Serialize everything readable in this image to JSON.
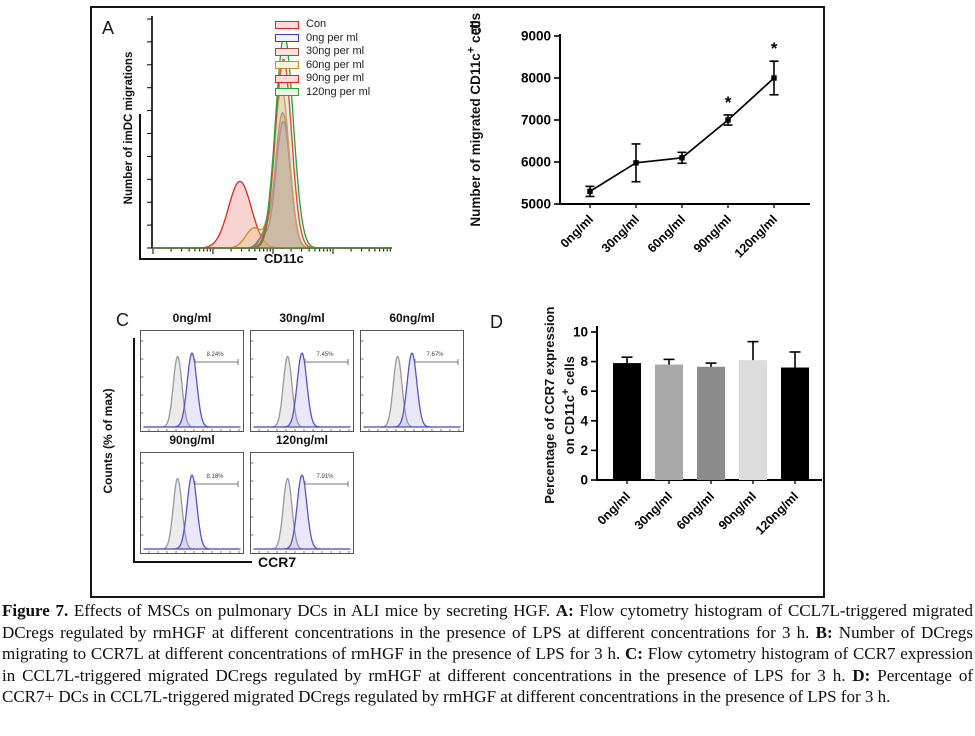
{
  "panel_a": {
    "label": "A",
    "y_axis_label": "Number of imDC migrations",
    "x_axis_label": "CD11c",
    "legend": [
      {
        "label": "Con",
        "stroke": "#e8231c",
        "fill": "#fbdcda"
      },
      {
        "label": "0ng per ml",
        "stroke": "#3a3ac8",
        "fill": "#f2f2fb"
      },
      {
        "label": "30ng per ml",
        "stroke": "#9c4a42",
        "fill": "#f5e4e0"
      },
      {
        "label": "60ng per ml",
        "stroke": "#c28f2c",
        "fill": "#faf2da"
      },
      {
        "label": "90ng per ml",
        "stroke": "#e8231c",
        "fill": "#fbdcda"
      },
      {
        "label": "120ng per ml",
        "stroke": "#2f9e35",
        "fill": "#e9f4e6"
      }
    ]
  },
  "panel_b": {
    "label": "B",
    "y_axis_label": {
      "pre": "Number of migrated CD11c",
      "sup": "+",
      "post": " cells"
    }
  },
  "panel_c": {
    "label": "C",
    "y_axis_label": "Counts (% of max)",
    "x_axis_label": "CCR7"
  },
  "panel_d": {
    "label": "D",
    "y_axis_label_line1": "Percentage of CCR7 expression",
    "y_axis_label_line2": {
      "pre": "on CD11c",
      "sup": "+",
      "post": " cells"
    }
  },
  "chart_data": [
    {
      "id": "A",
      "type": "area",
      "description": "Overlaid flow cytometry histograms of imDC migration vs CD11c",
      "xlabel": "CD11c",
      "ylabel": "Number of imDC migrations",
      "series": [
        {
          "name": "Con",
          "stroke": "#e8231c",
          "fill": "rgba(244,160,156,0.45)",
          "peaks": [
            {
              "center": 0.365,
              "height": 0.3,
              "sigma": 0.048
            }
          ]
        },
        {
          "name": "0ng per ml",
          "stroke": "#3a3ac8",
          "fill": "rgba(130,130,205,0.30)",
          "peaks": [
            {
              "center": 0.462,
              "height": 0.05,
              "sigma": 0.022
            },
            {
              "center": 0.547,
              "height": 0.57,
              "sigma": 0.03
            }
          ]
        },
        {
          "name": "30ng per ml",
          "stroke": "#9c4a42",
          "fill": "rgba(165,110,100,0.38)",
          "peaks": [
            {
              "center": 0.468,
              "height": 0.06,
              "sigma": 0.02
            },
            {
              "center": 0.545,
              "height": 0.61,
              "sigma": 0.031
            }
          ]
        },
        {
          "name": "60ng per ml",
          "stroke": "#c28f2c",
          "fill": "rgba(225,195,120,0.35)",
          "peaks": [
            {
              "center": 0.425,
              "height": 0.09,
              "sigma": 0.035
            },
            {
              "center": 0.54,
              "height": 0.72,
              "sigma": 0.032
            }
          ]
        },
        {
          "name": "90ng per ml",
          "stroke": "#e8231c",
          "fill": "rgba(240,170,165,0.22)",
          "peaks": [
            {
              "center": 0.548,
              "height": 0.85,
              "sigma": 0.034
            }
          ]
        },
        {
          "name": "120ng per ml",
          "stroke": "#2f9e35",
          "fill": "rgba(170,215,170,0.22)",
          "peaks": [
            {
              "center": 0.552,
              "height": 0.96,
              "sigma": 0.037
            }
          ]
        }
      ]
    },
    {
      "id": "B",
      "type": "line",
      "categories": [
        "0ng/ml",
        "30ng/ml",
        "60ng/ml",
        "90ng/ml",
        "120ng/ml"
      ],
      "values": [
        5300,
        5980,
        6100,
        7000,
        8000
      ],
      "errors": [
        120,
        450,
        130,
        120,
        400
      ],
      "significance": [
        "",
        "",
        "",
        "*",
        "*"
      ],
      "ylabel": "Number of migrated CD11c+ cells",
      "xlabel": "",
      "ylim": [
        5000,
        9000
      ],
      "yticks": [
        5000,
        6000,
        7000,
        8000,
        9000
      ],
      "line_color": "#000000"
    },
    {
      "id": "C",
      "type": "flow-histogram-grid",
      "ylabel": "Counts (% of max)",
      "xlabel": "CCR7",
      "subpanels": [
        {
          "label": "0ng/ml",
          "percent": "8.24%"
        },
        {
          "label": "30ng/ml",
          "percent": "7.45%"
        },
        {
          "label": "60ng/ml",
          "percent": "7.67%"
        },
        {
          "label": "90ng/ml",
          "percent": "8.18%"
        },
        {
          "label": "120ng/ml",
          "percent": "7.91%"
        }
      ],
      "curves": {
        "control": {
          "stroke": "#999999",
          "fill": "rgba(205,205,205,0.40)",
          "center": 0.35,
          "height": 0.84,
          "sigma": 0.045
        },
        "sample": {
          "stroke": "#5353d6",
          "fill": "rgba(150,150,230,0.22)",
          "center": 0.5,
          "height": 0.88,
          "sigma": 0.05
        }
      },
      "gate_color": "#777777"
    },
    {
      "id": "D",
      "type": "bar",
      "categories": [
        "0ng/ml",
        "30ng/ml",
        "60ng/ml",
        "90ng/ml",
        "120ng/ml"
      ],
      "values": [
        7.9,
        7.8,
        7.65,
        8.1,
        7.6
      ],
      "errors_up": [
        0.4,
        0.35,
        0.25,
        1.25,
        1.05
      ],
      "bar_colors": [
        "#000000",
        "#a9a9a9",
        "#8c8c8c",
        "#dcdcdc",
        "#000000"
      ],
      "ylabel": "Percentage of CCR7 expression on CD11c+ cells",
      "xlabel": "",
      "ylim": [
        0,
        10
      ],
      "yticks": [
        0,
        2,
        4,
        6,
        8,
        10
      ]
    }
  ],
  "caption": {
    "segments": [
      {
        "bold": true,
        "text": "Figure 7."
      },
      {
        "bold": false,
        "text": " Effects of MSCs on pulmonary DCs in ALI mice by secreting HGF. "
      },
      {
        "bold": true,
        "text": "A:"
      },
      {
        "bold": false,
        "text": " Flow cytometry histogram of CCL7L-triggered migrated DCregs regulated by rmHGF at different concentrations in the presence of LPS at different concentrations for 3 h. "
      },
      {
        "bold": true,
        "text": "B:"
      },
      {
        "bold": false,
        "text": " Number of DCregs migrating to CCR7L at different concentrations of rmHGF in the presence of LPS for 3 h. "
      },
      {
        "bold": true,
        "text": "C:"
      },
      {
        "bold": false,
        "text": " Flow cytometry histogram of CCR7 expression in CCL7L-triggered migrated DCregs regulated by rmHGF at different concentrations in the presence of LPS for 3 h. "
      },
      {
        "bold": true,
        "text": "D:"
      },
      {
        "bold": false,
        "text": " Percentage of CCR7+ DCs in CCL7L-triggered migrated DCregs regulated by rmHGF at different concentrations in the presence of LPS for 3 h."
      }
    ]
  }
}
